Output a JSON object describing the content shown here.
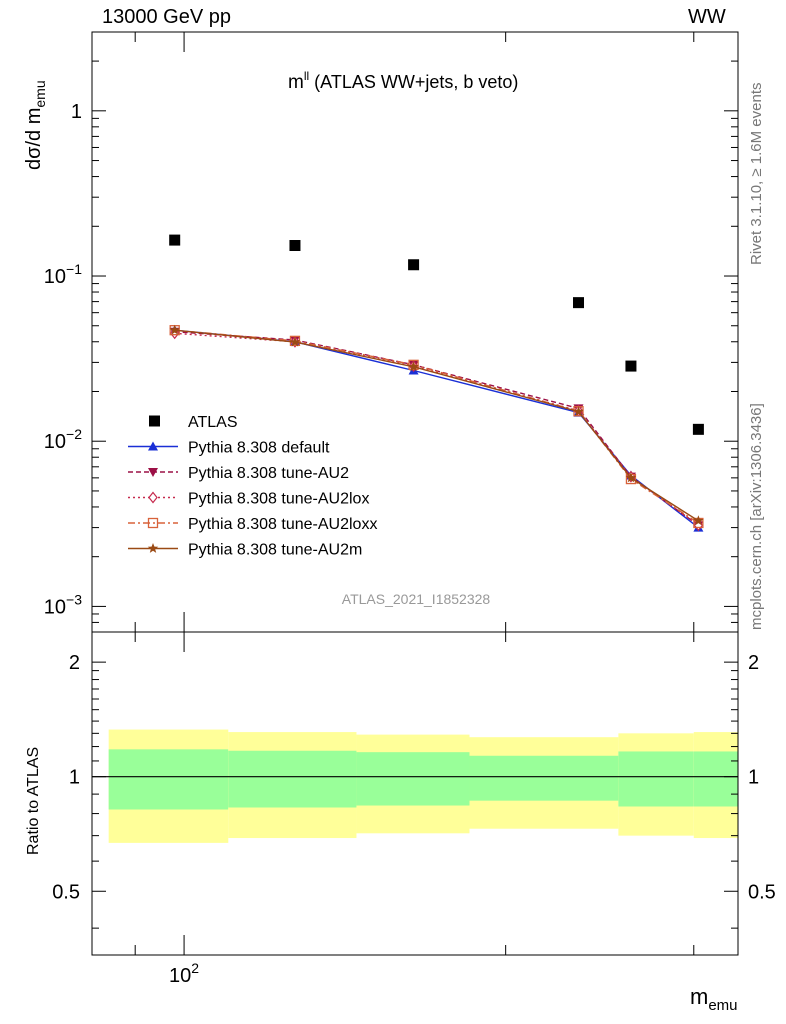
{
  "header": {
    "left": "13000 GeV pp",
    "right": "WW"
  },
  "side_labels": {
    "rivet": "Rivet 3.1.10, ≥ 1.6M events",
    "mcplots": "mcplots.cern.ch [arXiv:1306.3436]"
  },
  "chart_data": {
    "type": "scatter",
    "title_main": "m",
    "title_sup": "ll",
    "title_rest": " (ATLAS WW+jets, b veto)",
    "ylabel_main": "dσ/d m",
    "ylabel_sub": "emu",
    "xlabel_main": "m",
    "xlabel_sub": "emu",
    "watermark": "ATLAS_2021_I1852328",
    "ratio_ylabel": "Ratio to ATLAS",
    "log_x": true,
    "log_y": true,
    "xlim": [
      82,
      330
    ],
    "ylim": [
      0.0007,
      3.0
    ],
    "ratio_ylim": [
      0.34,
      2.4
    ],
    "x_tick_label": "10",
    "x_tick_sup": "2",
    "y_ticks": [
      {
        "v": 1,
        "base": "1",
        "sup": ""
      },
      {
        "v": 0.1,
        "base": "10",
        "sup": "−1"
      },
      {
        "v": 0.01,
        "base": "10",
        "sup": "−2"
      },
      {
        "v": 0.001,
        "base": "10",
        "sup": "−3"
      }
    ],
    "ratio_ticks": [
      {
        "v": 2,
        "label": "2"
      },
      {
        "v": 1,
        "label": "1"
      },
      {
        "v": 0.5,
        "label": "0.5"
      }
    ],
    "bins": [
      [
        85,
        110
      ],
      [
        110,
        145
      ],
      [
        145,
        185
      ],
      [
        185,
        255
      ],
      [
        255,
        300
      ],
      [
        300,
        330
      ]
    ],
    "x": [
      98,
      127,
      164,
      234,
      262,
      303
    ],
    "atlas_label": "ATLAS",
    "atlas_y": [
      0.165,
      0.153,
      0.117,
      0.069,
      0.0285,
      0.0118
    ],
    "band_inner": [
      0.18,
      0.17,
      0.16,
      0.135,
      0.165,
      0.165
    ],
    "band_outer": [
      0.33,
      0.31,
      0.29,
      0.27,
      0.3,
      0.31
    ],
    "series": [
      {
        "name": "Pythia 8.308 default",
        "color": "#1a2fd6",
        "dash": "",
        "marker": "triangle-up",
        "values": [
          0.047,
          0.04,
          0.0268,
          0.0149,
          0.0062,
          0.003
        ]
      },
      {
        "name": "Pythia 8.308 tune-AU2",
        "color": "#9c1046",
        "dash": "5,3",
        "marker": "triangle-down",
        "values": [
          0.046,
          0.041,
          0.029,
          0.0158,
          0.0061,
          0.0031
        ]
      },
      {
        "name": "Pythia 8.308 tune-AU2lox",
        "color": "#c62a4e",
        "dash": "2,3",
        "marker": "diamond-open",
        "values": [
          0.045,
          0.04,
          0.0285,
          0.0153,
          0.0061,
          0.0031
        ]
      },
      {
        "name": "Pythia 8.308 tune-AU2loxx",
        "color": "#d8623a",
        "dash": "7,3,2,3",
        "marker": "square-open",
        "values": [
          0.047,
          0.0405,
          0.029,
          0.0152,
          0.0059,
          0.0032
        ]
      },
      {
        "name": "Pythia 8.308 tune-AU2m",
        "color": "#9a4a14",
        "dash": "",
        "marker": "star",
        "values": [
          0.047,
          0.0398,
          0.0282,
          0.0151,
          0.006,
          0.0033
        ]
      }
    ]
  }
}
